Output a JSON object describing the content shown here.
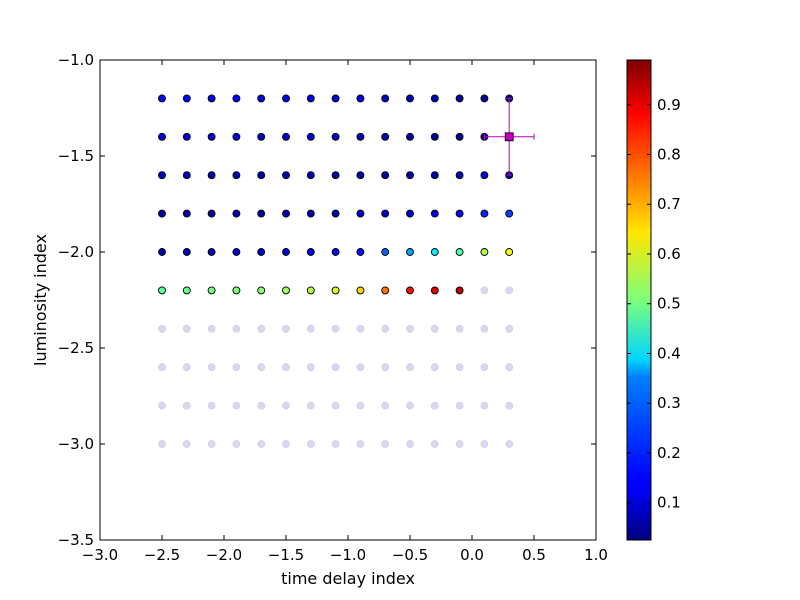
{
  "chart_data": {
    "type": "scatter",
    "title": "",
    "xlabel": "time delay index",
    "ylabel": "luminosity index",
    "xlim": [
      -3.0,
      1.0
    ],
    "ylim": [
      -3.5,
      -1.0
    ],
    "xticks": [
      -3.0,
      -2.5,
      -2.0,
      -1.5,
      -1.0,
      -0.5,
      0.0,
      0.5,
      1.0
    ],
    "xtick_labels": [
      "−3.0",
      "−2.5",
      "−2.0",
      "−1.5",
      "−1.0",
      "−0.5",
      "0.0",
      "0.5",
      "1.0"
    ],
    "yticks": [
      -3.5,
      -3.0,
      -2.5,
      -2.0,
      -1.5,
      -1.0
    ],
    "ytick_labels": [
      "−3.5",
      "−3.0",
      "−2.5",
      "−2.0",
      "−1.5",
      "−1.0"
    ],
    "grid": false,
    "x_values": [
      -2.5,
      -2.3,
      -2.1,
      -1.9,
      -1.7,
      -1.5,
      -1.3,
      -1.1,
      -0.9,
      -0.7,
      -0.5,
      -0.3,
      -0.1,
      0.1,
      0.3
    ],
    "rows": [
      {
        "y": -1.2,
        "values": [
          0.15,
          0.15,
          0.14,
          0.14,
          0.13,
          0.13,
          0.12,
          0.12,
          0.11,
          0.1,
          0.09,
          0.07,
          0.05,
          0.04,
          0.03
        ]
      },
      {
        "y": -1.4,
        "values": [
          0.12,
          0.12,
          0.11,
          0.11,
          0.1,
          0.1,
          0.09,
          0.09,
          0.08,
          0.07,
          0.06,
          0.05,
          0.04,
          0.03,
          0.03
        ]
      },
      {
        "y": -1.6,
        "values": [
          0.08,
          0.08,
          0.07,
          0.07,
          0.07,
          0.07,
          0.07,
          0.06,
          0.06,
          0.06,
          0.06,
          0.07,
          0.08,
          0.1,
          0.04
        ]
      },
      {
        "y": -1.8,
        "values": [
          0.06,
          0.06,
          0.06,
          0.06,
          0.06,
          0.07,
          0.07,
          0.08,
          0.09,
          0.1,
          0.11,
          0.13,
          0.15,
          0.18,
          0.21
        ]
      },
      {
        "y": -2.0,
        "values": [
          0.07,
          0.07,
          0.08,
          0.09,
          0.1,
          0.11,
          0.12,
          0.14,
          0.16,
          0.24,
          0.3,
          0.37,
          0.46,
          0.55,
          0.62
        ]
      },
      {
        "y": -2.2,
        "values": [
          0.47,
          0.49,
          0.5,
          0.51,
          0.52,
          0.54,
          0.56,
          0.6,
          0.67,
          0.76,
          0.86,
          0.9,
          0.93,
          null,
          null
        ]
      },
      {
        "y": -2.4,
        "values": [
          null,
          null,
          null,
          null,
          null,
          null,
          null,
          null,
          null,
          null,
          null,
          null,
          null,
          null,
          null
        ]
      },
      {
        "y": -2.6,
        "values": [
          null,
          null,
          null,
          null,
          null,
          null,
          null,
          null,
          null,
          null,
          null,
          null,
          null,
          null,
          null
        ]
      },
      {
        "y": -2.8,
        "values": [
          null,
          null,
          null,
          null,
          null,
          null,
          null,
          null,
          null,
          null,
          null,
          null,
          null,
          null,
          null
        ]
      },
      {
        "y": -3.0,
        "values": [
          null,
          null,
          null,
          null,
          null,
          null,
          null,
          null,
          null,
          null,
          null,
          null,
          null,
          null,
          null
        ]
      }
    ],
    "marker": {
      "x": 0.3,
      "y": -1.4,
      "x_err": 0.2,
      "y_err": 0.2,
      "color": "#bf00bf"
    },
    "colorbar": {
      "colormap": "jet",
      "range": [
        0.025,
        0.99
      ],
      "ticks": [
        0.1,
        0.2,
        0.3,
        0.4,
        0.5,
        0.6,
        0.7,
        0.8,
        0.9
      ],
      "tick_labels": [
        "0.1",
        "0.2",
        "0.3",
        "0.4",
        "0.5",
        "0.6",
        "0.7",
        "0.8",
        "0.9"
      ]
    },
    "masked_color": "#d8d8f0"
  }
}
